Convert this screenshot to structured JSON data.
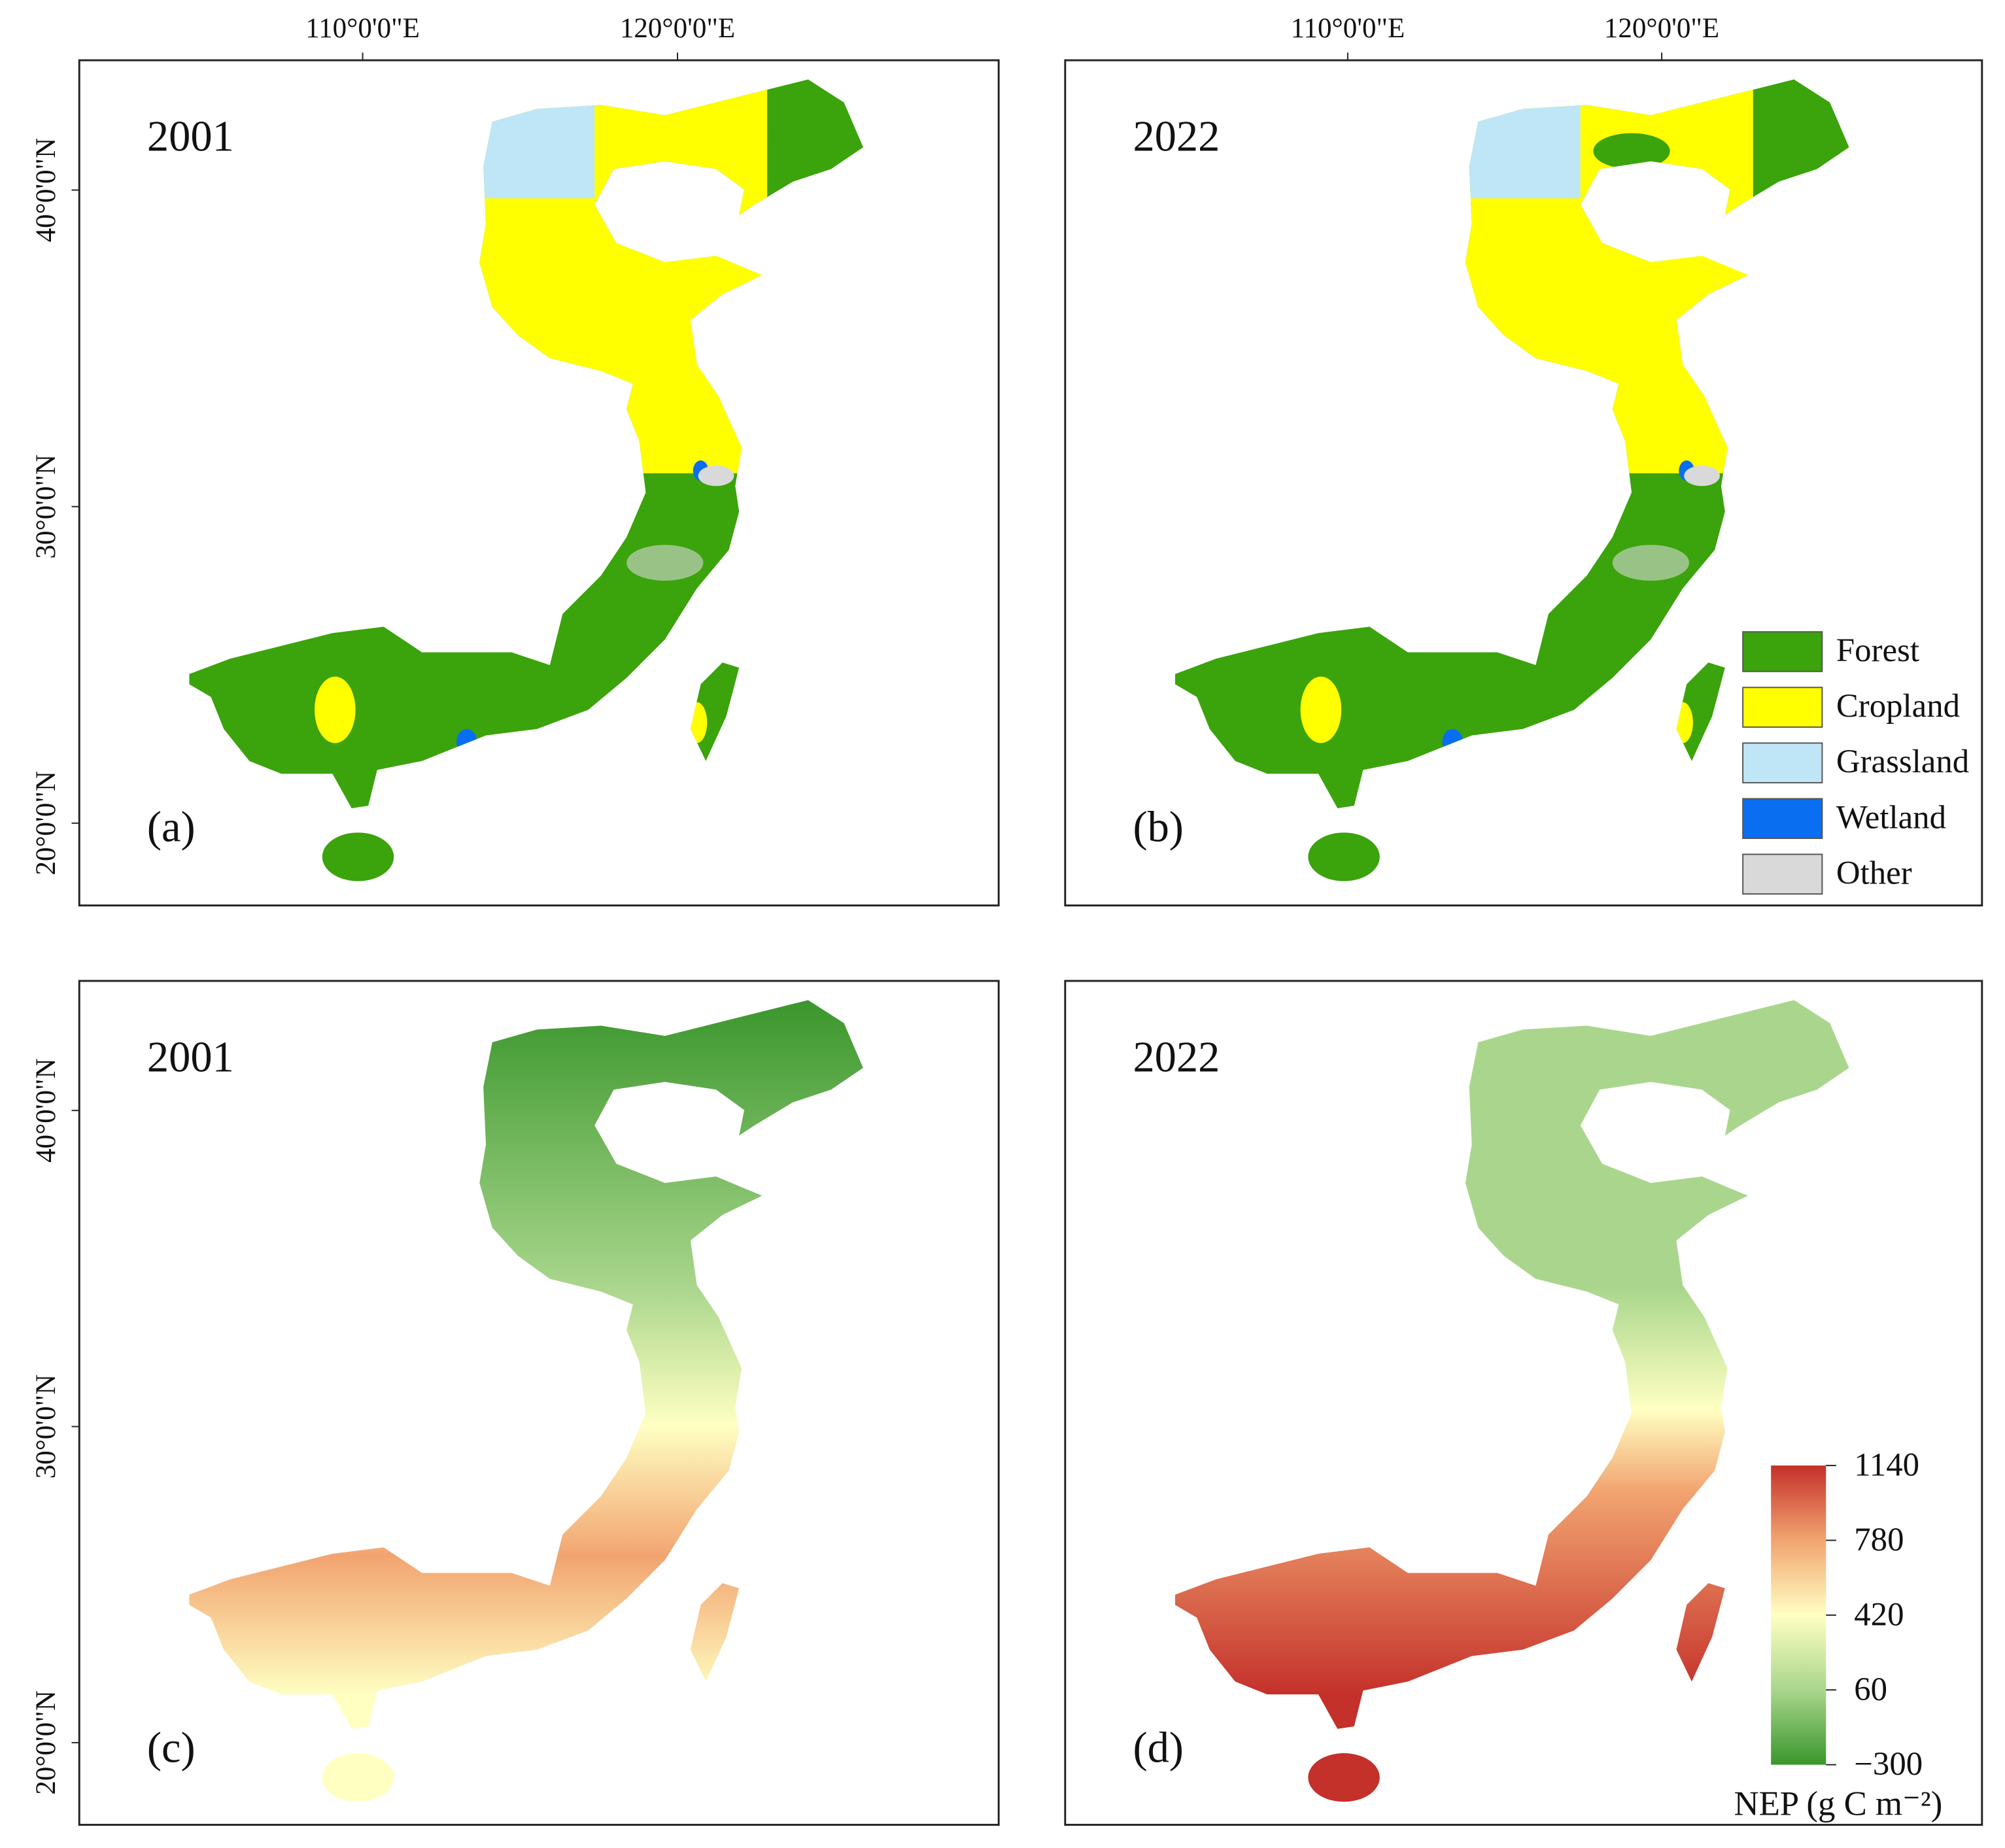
{
  "figure": {
    "xlim": [
      101,
      130.2
    ],
    "ylim": [
      17.4,
      44.1
    ],
    "lon_ticks": [
      {
        "value": 110,
        "label": "110°0'0\"E"
      },
      {
        "value": 120,
        "label": "120°0'0\"E"
      }
    ],
    "lat_ticks": [
      {
        "value": 40,
        "label": "40°0'0\"N"
      },
      {
        "value": 30,
        "label": "30°0'0\"N"
      },
      {
        "value": 20,
        "label": "20°0'0\"N"
      }
    ],
    "panels": [
      {
        "year": "2001",
        "label": "(a)",
        "layer": "land_cover"
      },
      {
        "year": "2022",
        "label": "(b)",
        "layer": "land_cover"
      },
      {
        "year": "2001",
        "label": "(c)",
        "layer": "nep"
      },
      {
        "year": "2022",
        "label": "(d)",
        "layer": "nep"
      }
    ],
    "land_cover_legend": [
      {
        "name": "Forest",
        "color": "#3ba30b"
      },
      {
        "name": "Cropland",
        "color": "#ffff00"
      },
      {
        "name": "Grassland",
        "color": "#bfe6f7"
      },
      {
        "name": "Wetland",
        "color": "#0a6ef0"
      },
      {
        "name": "Other",
        "color": "#d9d9d9"
      }
    ],
    "nep_colorbar": {
      "title": "NEP (g C m⁻²)",
      "range": [
        -300,
        1140
      ],
      "ticks": [
        {
          "value": -300,
          "label": "−300"
        },
        60,
        420,
        780,
        1140
      ],
      "colors": [
        "#3a962c",
        "#a9d68c",
        "#ffffc2",
        "#f2a470",
        "#c4302a"
      ]
    }
  }
}
